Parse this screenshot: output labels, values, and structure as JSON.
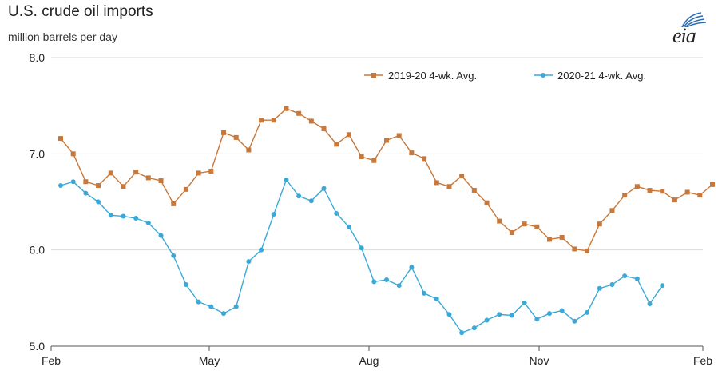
{
  "header": {
    "title": "U.S. crude oil imports",
    "subtitle": "million barrels per day",
    "logo_text": "eia"
  },
  "chart_data": {
    "type": "line",
    "title": "U.S. crude oil imports",
    "ylabel": "million barrels per day",
    "ylim": [
      5.0,
      8.0
    ],
    "y_ticks": [
      "5.0",
      "6.0",
      "7.0",
      "8.0"
    ],
    "x_ticks": [
      "Feb",
      "May",
      "Aug",
      "Nov",
      "Feb"
    ],
    "grid": true,
    "legend_position": "top-right",
    "series": [
      {
        "name": "2019-20  4-wk. Avg.",
        "color": "#c8783a",
        "marker": "square",
        "values": [
          7.16,
          7.0,
          6.71,
          6.67,
          6.8,
          6.66,
          6.81,
          6.75,
          6.72,
          6.48,
          6.63,
          6.8,
          6.82,
          7.22,
          7.17,
          7.04,
          7.35,
          7.35,
          7.47,
          7.42,
          7.34,
          7.26,
          7.1,
          7.2,
          6.97,
          6.93,
          7.14,
          7.19,
          7.01,
          6.95,
          6.7,
          6.66,
          6.77,
          6.62,
          6.49,
          6.3,
          6.18,
          6.27,
          6.24,
          6.11,
          6.13,
          6.01,
          5.99,
          6.27,
          6.41,
          6.57,
          6.66,
          6.62,
          6.61,
          6.52,
          6.6,
          6.57,
          6.68
        ]
      },
      {
        "name": "2020-21  4-wk. Avg.",
        "color": "#3aa9d8",
        "marker": "circle",
        "values": [
          6.67,
          6.71,
          6.59,
          6.5,
          6.36,
          6.35,
          6.33,
          6.28,
          6.15,
          5.94,
          5.64,
          5.46,
          5.41,
          5.34,
          5.41,
          5.88,
          6.0,
          6.37,
          6.73,
          6.56,
          6.51,
          6.64,
          6.38,
          6.24,
          6.02,
          5.67,
          5.69,
          5.63,
          5.82,
          5.55,
          5.49,
          5.33,
          5.14,
          5.19,
          5.27,
          5.33,
          5.32,
          5.45,
          5.28,
          5.34,
          5.37,
          5.26,
          5.35,
          5.6,
          5.64,
          5.73,
          5.7,
          5.44,
          5.63
        ]
      }
    ]
  }
}
